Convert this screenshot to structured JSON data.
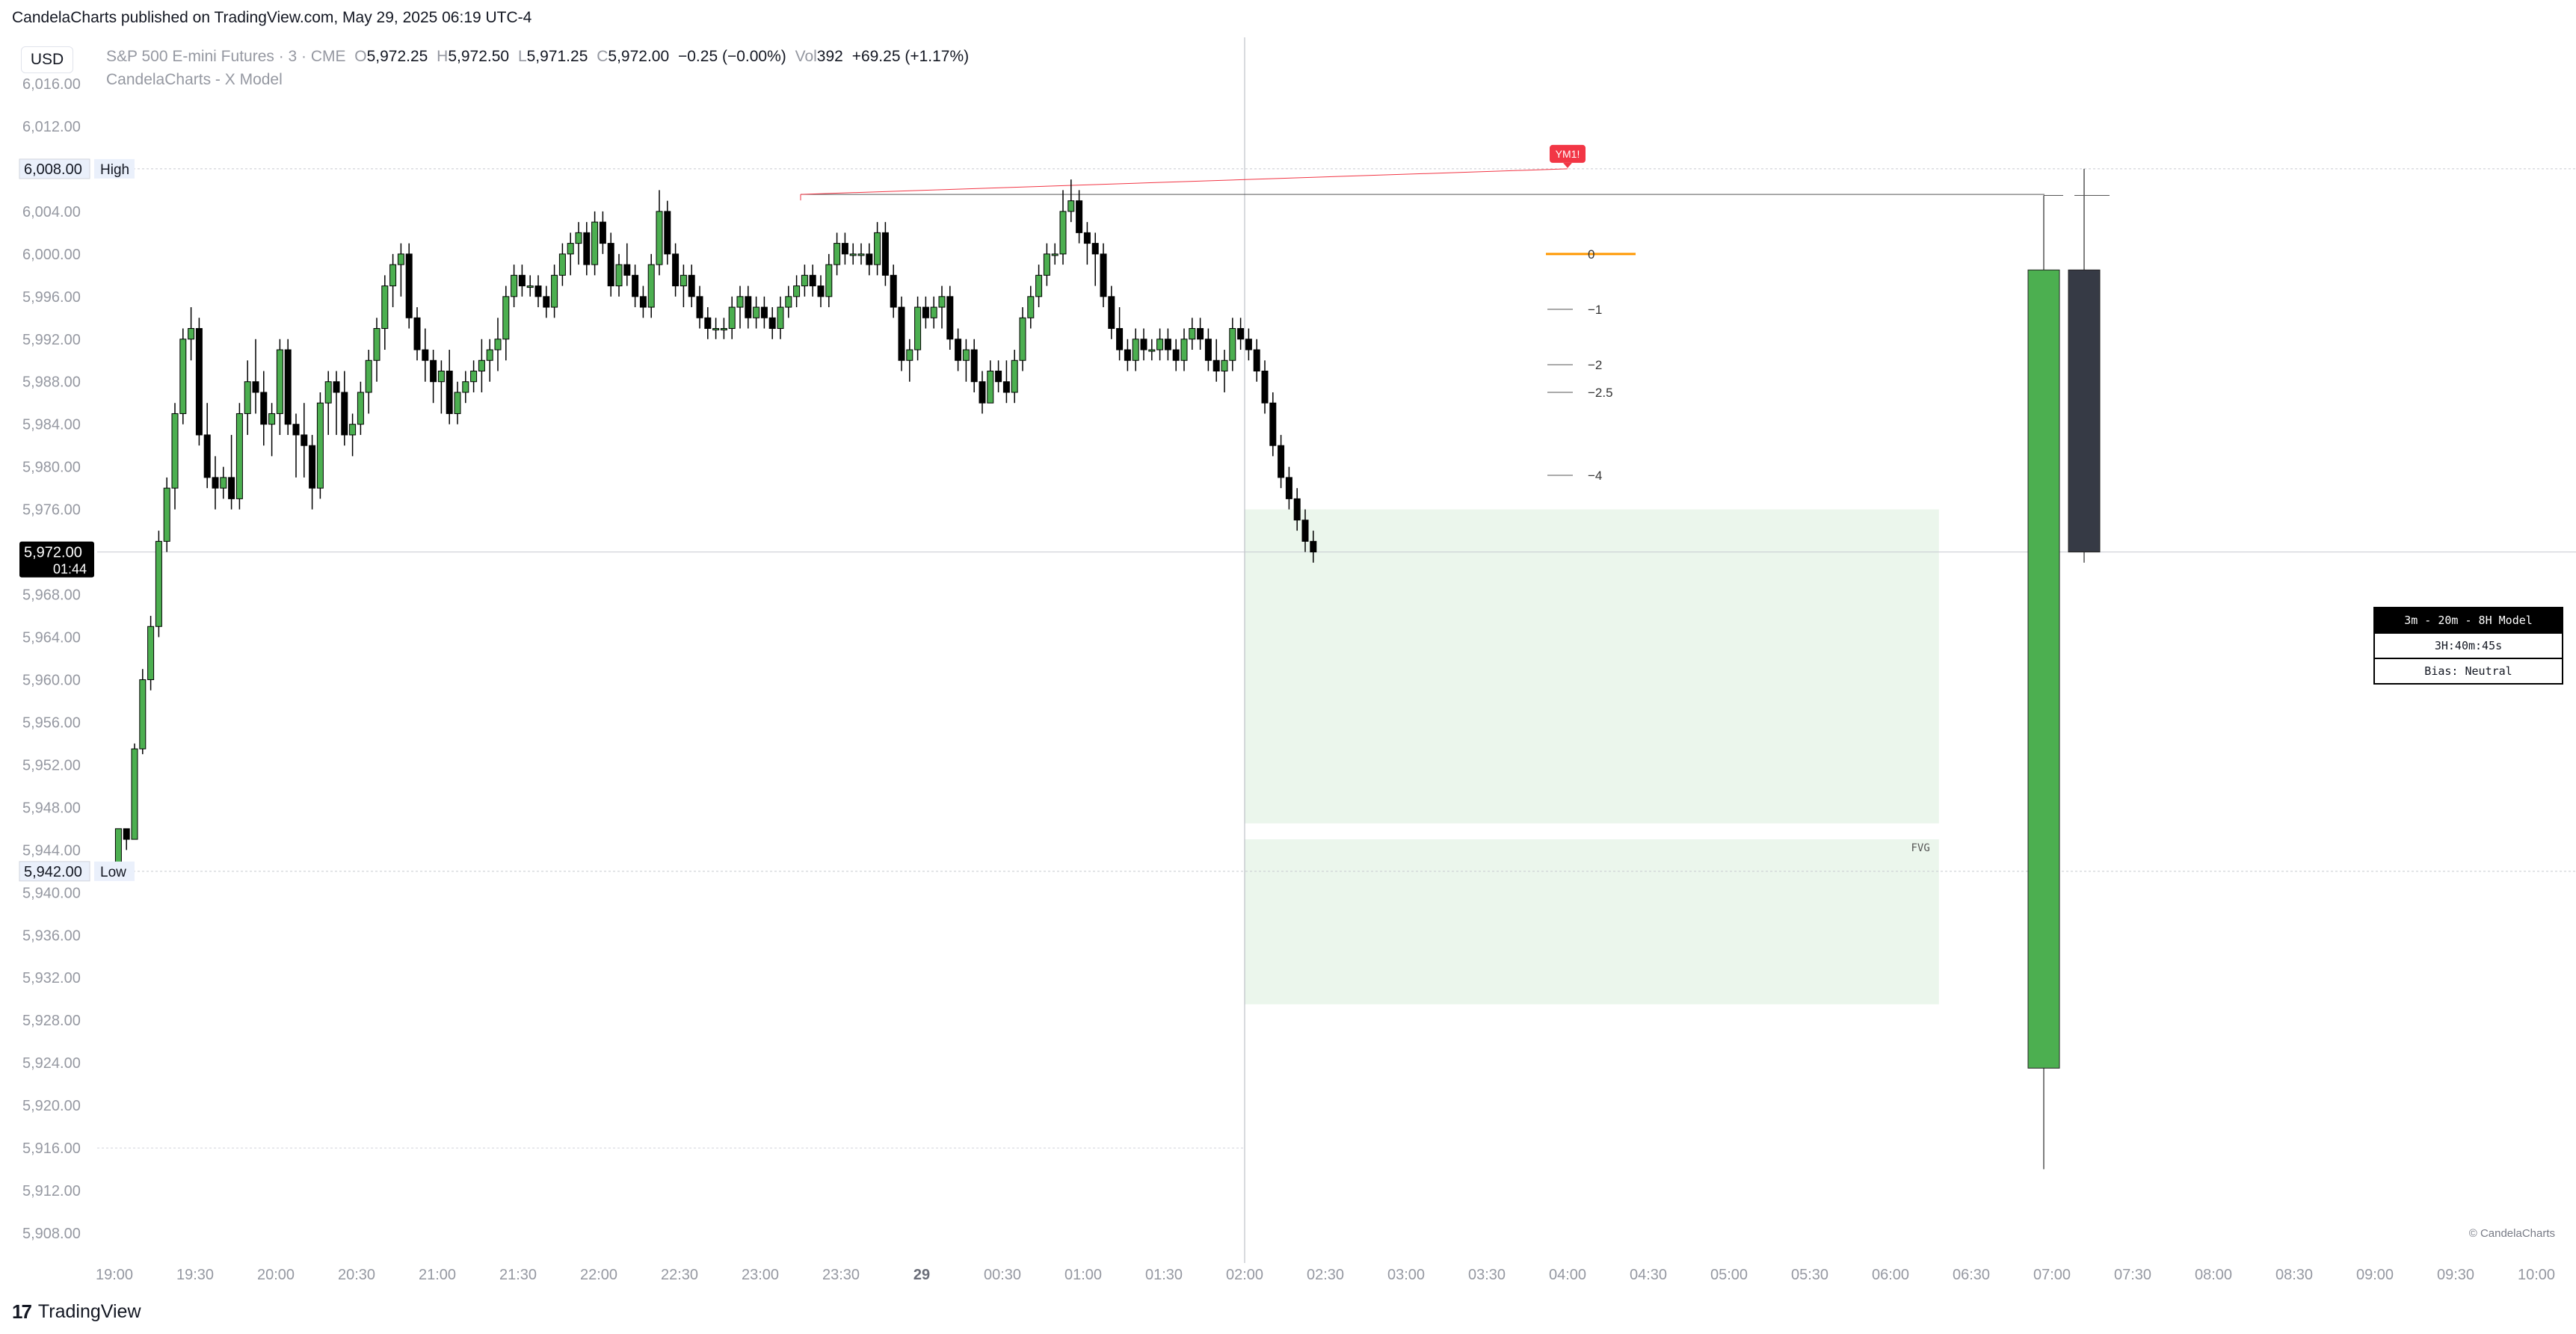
{
  "header": {
    "published": "CandelaCharts published on TradingView.com, May 29, 2025 06:19 UTC-4",
    "currency": "USD"
  },
  "legend": {
    "symbol": "S&P 500 E-mini Futures · 3 · CME",
    "o_label": "O",
    "o": "5,972.25",
    "h_label": "H",
    "h": "5,972.50",
    "l_label": "L",
    "l": "5,971.25",
    "c_label": "C",
    "c": "5,972.00",
    "change": "−0.25 (−0.00%)",
    "vol_label": "Vol",
    "vol": "392",
    "vol_change": "+69.25 (+1.17%)",
    "indicator": "CandelaCharts - X Model"
  },
  "chart_data": {
    "type": "candlestick",
    "y_ticks": [
      "6,016.00",
      "6,012.00",
      "6,008.00",
      "6,004.00",
      "6,000.00",
      "5,996.00",
      "5,992.00",
      "5,988.00",
      "5,984.00",
      "5,980.00",
      "5,976.00",
      "5,972.00",
      "5,968.00",
      "5,964.00",
      "5,960.00",
      "5,956.00",
      "5,952.00",
      "5,948.00",
      "5,944.00",
      "5,940.00",
      "5,936.00",
      "5,932.00",
      "5,928.00",
      "5,924.00",
      "5,920.00",
      "5,916.00",
      "5,912.00",
      "5,908.00"
    ],
    "ylim": [
      5906,
      6018
    ],
    "x_ticks": [
      "19:00",
      "19:30",
      "20:00",
      "20:30",
      "21:00",
      "21:30",
      "22:00",
      "22:30",
      "23:00",
      "23:30",
      "29",
      "00:30",
      "01:00",
      "01:30",
      "02:00",
      "02:30",
      "03:00",
      "03:30",
      "04:00",
      "04:30",
      "05:00",
      "05:30",
      "06:00",
      "06:30",
      "07:00",
      "07:30",
      "08:00",
      "08:30",
      "09:00",
      "09:30",
      "10:00"
    ],
    "bar_minutes": 3,
    "start_time": "19:00",
    "price_label": {
      "value": "5,972.00",
      "countdown": "01:44"
    },
    "high_label": {
      "value": "6,008.00",
      "text": "High"
    },
    "low_label": {
      "value": "5,942.00",
      "text": "Low"
    },
    "session_line_time": "02:00",
    "fvg_zones": [
      {
        "top": 5976.0,
        "bottom": 5946.5,
        "start": "02:00",
        "end": "06:18"
      },
      {
        "top": 5945.0,
        "bottom": 5929.5,
        "start": "02:00",
        "end": "06:18",
        "label": "FVG"
      }
    ],
    "ym_marker": {
      "label": "YM1!",
      "time": "04:00",
      "price": 6008.0
    },
    "ym_line": {
      "from_time": "23:15",
      "from_price": 6005.6,
      "to_time": "04:00",
      "to_price": 6008.0
    },
    "swing_high_line": {
      "price": 6005.6,
      "start": "23:15",
      "end": "07:00"
    },
    "deviation_levels": [
      {
        "label": "0",
        "price": 6000.0
      },
      {
        "label": "−1",
        "price": 5994.8
      },
      {
        "label": "−2",
        "price": 5989.6
      },
      {
        "label": "−2.5",
        "price": 5987.0
      },
      {
        "label": "−4",
        "price": 5979.2
      }
    ],
    "htf_candles": [
      {
        "open": 5923.5,
        "high": 6005.5,
        "low": 5914.0,
        "close": 5998.5,
        "color": "#4caf50"
      },
      {
        "open": 5998.5,
        "high": 6008.0,
        "low": 5971.0,
        "close": 5972.0,
        "color": "#363a45"
      }
    ],
    "candles": [
      [
        5942,
        5946,
        5942,
        5946
      ],
      [
        5946,
        5946,
        5944,
        5945
      ],
      [
        5945,
        5954,
        5945,
        5953.5
      ],
      [
        5953.5,
        5961,
        5953,
        5960
      ],
      [
        5960,
        5966,
        5959,
        5965
      ],
      [
        5965,
        5974,
        5964,
        5973
      ],
      [
        5973,
        5979,
        5972,
        5978
      ],
      [
        5978,
        5986,
        5976,
        5985
      ],
      [
        5985,
        5993,
        5984,
        5992
      ],
      [
        5992,
        5995,
        5990,
        5993
      ],
      [
        5993,
        5994,
        5982,
        5983
      ],
      [
        5983,
        5986,
        5978,
        5979
      ],
      [
        5979,
        5981,
        5976,
        5978
      ],
      [
        5978,
        5980,
        5977,
        5979
      ],
      [
        5979,
        5983,
        5976,
        5977
      ],
      [
        5977,
        5986,
        5976,
        5985
      ],
      [
        5985,
        5990,
        5983,
        5988
      ],
      [
        5988,
        5992,
        5985,
        5987
      ],
      [
        5987,
        5989,
        5982,
        5984
      ],
      [
        5984,
        5986,
        5981,
        5985
      ],
      [
        5985,
        5992,
        5983,
        5991
      ],
      [
        5991,
        5992,
        5983,
        5984
      ],
      [
        5984,
        5985,
        5979,
        5983
      ],
      [
        5983,
        5986,
        5979,
        5982
      ],
      [
        5982,
        5983,
        5976,
        5978
      ],
      [
        5978,
        5987,
        5977,
        5986
      ],
      [
        5986,
        5989,
        5983,
        5988
      ],
      [
        5988,
        5989,
        5983,
        5987
      ],
      [
        5987,
        5989,
        5982,
        5983
      ],
      [
        5983,
        5985,
        5981,
        5984
      ],
      [
        5984,
        5988,
        5983,
        5987
      ],
      [
        5987,
        5991,
        5985,
        5990
      ],
      [
        5990,
        5994,
        5988,
        5993
      ],
      [
        5993,
        5998,
        5991,
        5997
      ],
      [
        5997,
        6000,
        5995,
        5999
      ],
      [
        5999,
        6001,
        5996,
        6000
      ],
      [
        6000,
        6001,
        5993,
        5994
      ],
      [
        5994,
        5995,
        5990,
        5991
      ],
      [
        5991,
        5993,
        5988,
        5990
      ],
      [
        5990,
        5991,
        5986,
        5988
      ],
      [
        5988,
        5990,
        5985,
        5989
      ],
      [
        5989,
        5991,
        5984,
        5985
      ],
      [
        5985,
        5988,
        5984,
        5987
      ],
      [
        5987,
        5989,
        5986,
        5988
      ],
      [
        5988,
        5990,
        5987,
        5989
      ],
      [
        5989,
        5992,
        5987,
        5990
      ],
      [
        5990,
        5992,
        5988,
        5991
      ],
      [
        5991,
        5994,
        5989,
        5992
      ],
      [
        5992,
        5997,
        5990,
        5996
      ],
      [
        5996,
        5999,
        5995,
        5998
      ],
      [
        5998,
        5999,
        5996,
        5997
      ],
      [
        5997,
        5998,
        5996,
        5997
      ],
      [
        5997,
        5998,
        5995,
        5996
      ],
      [
        5996,
        5997,
        5994,
        5995
      ],
      [
        5995,
        5999,
        5994,
        5998
      ],
      [
        5998,
        6001,
        5997,
        6000
      ],
      [
        6000,
        6002,
        5998,
        6001
      ],
      [
        6001,
        6003,
        5999,
        6002
      ],
      [
        6002,
        6003,
        5998,
        5999
      ],
      [
        5999,
        6004,
        5998,
        6003
      ],
      [
        6003,
        6004,
        6000,
        6001
      ],
      [
        6001,
        6002,
        5996,
        5997
      ],
      [
        5997,
        6000,
        5996,
        5999
      ],
      [
        5999,
        6001,
        5997,
        5998
      ],
      [
        5998,
        5999,
        5995,
        5996
      ],
      [
        5996,
        5997,
        5994,
        5995
      ],
      [
        5995,
        6000,
        5994,
        5999
      ],
      [
        5999,
        6006,
        5998,
        6004
      ],
      [
        6004,
        6005,
        5999,
        6000
      ],
      [
        6000,
        6001,
        5996,
        5997
      ],
      [
        5997,
        5999,
        5995,
        5998
      ],
      [
        5998,
        5999,
        5995,
        5996
      ],
      [
        5996,
        5997,
        5993,
        5994
      ],
      [
        5994,
        5995,
        5992,
        5993
      ],
      [
        5993,
        5994,
        5992,
        5993
      ],
      [
        5993,
        5994,
        5992,
        5993
      ],
      [
        5993,
        5996,
        5992,
        5995
      ],
      [
        5995,
        5997,
        5993,
        5996
      ],
      [
        5996,
        5997,
        5993,
        5994
      ],
      [
        5994,
        5996,
        5993,
        5995
      ],
      [
        5995,
        5996,
        5993,
        5994
      ],
      [
        5994,
        5995,
        5992,
        5993
      ],
      [
        5993,
        5996,
        5992,
        5995
      ],
      [
        5995,
        5997,
        5994,
        5996
      ],
      [
        5996,
        5998,
        5995,
        5997
      ],
      [
        5997,
        5999,
        5996,
        5998
      ],
      [
        5998,
        5999,
        5996,
        5997
      ],
      [
        5997,
        5998,
        5995,
        5996
      ],
      [
        5996,
        6000,
        5995,
        5999
      ],
      [
        5999,
        6002,
        5998,
        6001
      ],
      [
        6001,
        6002,
        5999,
        6000
      ],
      [
        6000,
        6001,
        5999,
        6000
      ],
      [
        6000,
        6001,
        5999,
        6000
      ],
      [
        6000,
        6001,
        5998,
        5999
      ],
      [
        5999,
        6003,
        5998,
        6002
      ],
      [
        6002,
        6003,
        5997,
        5998
      ],
      [
        5998,
        5999,
        5994,
        5995
      ],
      [
        5995,
        5996,
        5989,
        5990
      ],
      [
        5990,
        5992,
        5988,
        5991
      ],
      [
        5991,
        5996,
        5990,
        5995
      ],
      [
        5995,
        5996,
        5993,
        5994
      ],
      [
        5994,
        5996,
        5993,
        5995
      ],
      [
        5995,
        5997,
        5993,
        5996
      ],
      [
        5996,
        5997,
        5991,
        5992
      ],
      [
        5992,
        5993,
        5989,
        5990
      ],
      [
        5990,
        5992,
        5988,
        5991
      ],
      [
        5991,
        5992,
        5987,
        5988
      ],
      [
        5988,
        5989,
        5985,
        5986
      ],
      [
        5986,
        5990,
        5986,
        5989
      ],
      [
        5989,
        5990,
        5987,
        5988
      ],
      [
        5988,
        5990,
        5986,
        5987
      ],
      [
        5987,
        5991,
        5986,
        5990
      ],
      [
        5990,
        5995,
        5989,
        5994
      ],
      [
        5994,
        5997,
        5993,
        5996
      ],
      [
        5996,
        5999,
        5995,
        5998
      ],
      [
        5998,
        6001,
        5997,
        6000
      ],
      [
        6000,
        6001,
        5999,
        6000
      ],
      [
        6000,
        6006,
        5999,
        6004
      ],
      [
        6004,
        6007,
        6003,
        6005
      ],
      [
        6005,
        6006,
        6001,
        6002
      ],
      [
        6002,
        6003,
        5999,
        6001
      ],
      [
        6001,
        6002,
        5997,
        6000
      ],
      [
        6000,
        6001,
        5995,
        5996
      ],
      [
        5996,
        5997,
        5992,
        5993
      ],
      [
        5993,
        5995,
        5990,
        5991
      ],
      [
        5991,
        5992,
        5989,
        5990
      ],
      [
        5990,
        5993,
        5989,
        5992
      ],
      [
        5992,
        5993,
        5990,
        5991
      ],
      [
        5991,
        5992,
        5990,
        5991
      ],
      [
        5991,
        5993,
        5990,
        5992
      ],
      [
        5992,
        5993,
        5990,
        5991
      ],
      [
        5991,
        5992,
        5989,
        5990
      ],
      [
        5990,
        5993,
        5989,
        5992
      ],
      [
        5992,
        5994,
        5991,
        5993
      ],
      [
        5993,
        5994,
        5991,
        5992
      ],
      [
        5992,
        5993,
        5989,
        5990
      ],
      [
        5990,
        5992,
        5988,
        5989
      ],
      [
        5989,
        5991,
        5987,
        5990
      ],
      [
        5990,
        5994,
        5989,
        5993
      ],
      [
        5993,
        5994,
        5991,
        5992
      ],
      [
        5992,
        5993,
        5990,
        5991
      ],
      [
        5991,
        5992,
        5988,
        5989
      ],
      [
        5989,
        5990,
        5985,
        5986
      ],
      [
        5986,
        5987,
        5981,
        5982
      ],
      [
        5982,
        5983,
        5978,
        5979
      ],
      [
        5979,
        5980,
        5976,
        5977
      ],
      [
        5977,
        5978,
        5974,
        5975
      ],
      [
        5975,
        5976,
        5972,
        5973
      ],
      [
        5973,
        5974,
        5971,
        5972
      ]
    ]
  },
  "info_table": {
    "title": "3m - 20m - 8H Model",
    "countdown": "3H:40m:45s",
    "bias": "Bias: Neutral"
  },
  "watermark": "© CandelaCharts",
  "footer": {
    "brand": "TradingView"
  }
}
